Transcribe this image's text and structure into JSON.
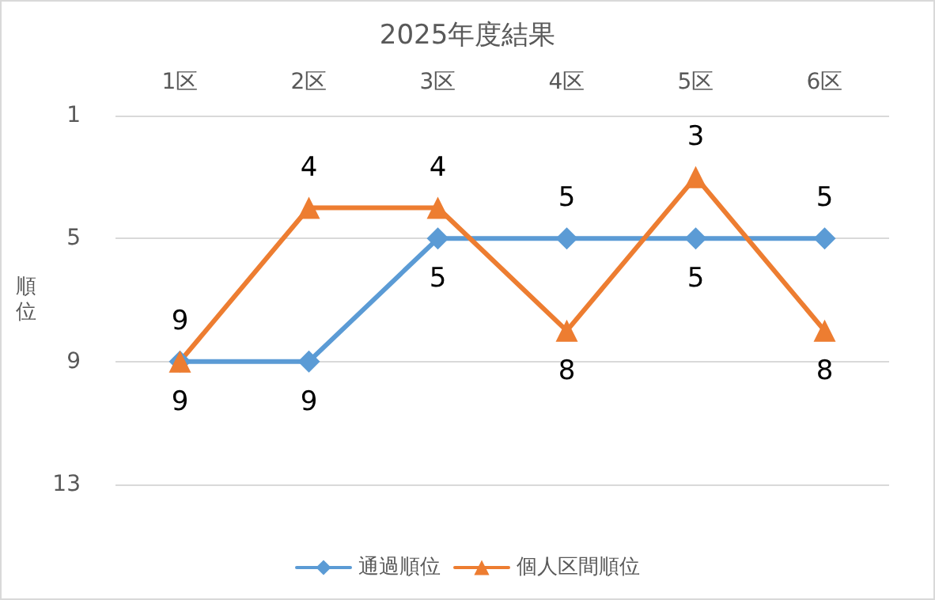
{
  "chart_data": {
    "type": "line",
    "title": "2025年度結果",
    "ylabel": "順位",
    "categories": [
      "1区",
      "2区",
      "3区",
      "4区",
      "5区",
      "6区"
    ],
    "series": [
      {
        "name": "通過順位",
        "color": "#5b9bd5",
        "marker": "diamond",
        "values": [
          9,
          9,
          5,
          5,
          5,
          5
        ]
      },
      {
        "name": "個人区間順位",
        "color": "#ed7d31",
        "marker": "triangle",
        "values": [
          9,
          4,
          4,
          8,
          3,
          8
        ]
      }
    ],
    "ylim": [
      13,
      1
    ],
    "yticks": [
      1,
      5,
      9,
      13
    ],
    "grid": "y",
    "legend": "bottom",
    "data_labels": true,
    "line_style": "solid"
  }
}
